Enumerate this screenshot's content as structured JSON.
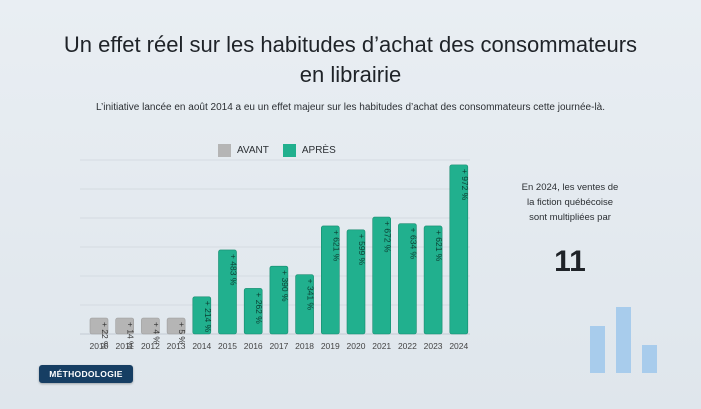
{
  "title_line1": "Un effet réel sur les habitudes d’achat des consommateurs",
  "title_line2": "en librairie",
  "subtitle": "L’initiative lancée en août 2014 a eu un effet majeur sur les habitudes d’achat des consommateurs cette journée-là.",
  "legend": {
    "before_label": "AVANT",
    "after_label": "APRÈS",
    "before_color": "#b5b5b5",
    "after_color": "#21b08e"
  },
  "side_panel": {
    "text": "En 2024, les ventes de la fiction québécoise sont multipliées par",
    "number": "11"
  },
  "method_button": "MÉTHODOLOGIE",
  "chart_data": {
    "type": "bar",
    "categories": [
      "2010",
      "2011",
      "2012",
      "2013",
      "2014",
      "2015",
      "2016",
      "2017",
      "2018",
      "2019",
      "2020",
      "2021",
      "2022",
      "2023",
      "2024"
    ],
    "series": [
      {
        "name": "AVANT",
        "values": [
          22,
          14,
          4,
          5,
          null,
          null,
          null,
          null,
          null,
          null,
          null,
          null,
          null,
          null,
          null
        ],
        "labels": [
          "+ 22 %",
          "+ 14 %",
          "+ 4 %",
          "+ 5 %",
          "",
          "",
          "",
          "",
          "",
          "",
          "",
          "",
          "",
          "",
          ""
        ]
      },
      {
        "name": "APRÈS",
        "values": [
          null,
          null,
          null,
          null,
          214,
          483,
          262,
          390,
          341,
          621,
          599,
          672,
          634,
          621,
          972
        ],
        "labels": [
          "",
          "",
          "",
          "",
          "+ 214 %",
          "+ 483 %",
          "+ 262 %",
          "+ 390 %",
          "+ 341 %",
          "+ 621 %",
          "+ 599 %",
          "+ 672 %",
          "+ 634 %",
          "+ 621 %",
          "+ 972 %"
        ]
      }
    ],
    "xlabel": "",
    "ylabel": "",
    "ylim": [
      0,
      1000
    ],
    "grid": true
  }
}
